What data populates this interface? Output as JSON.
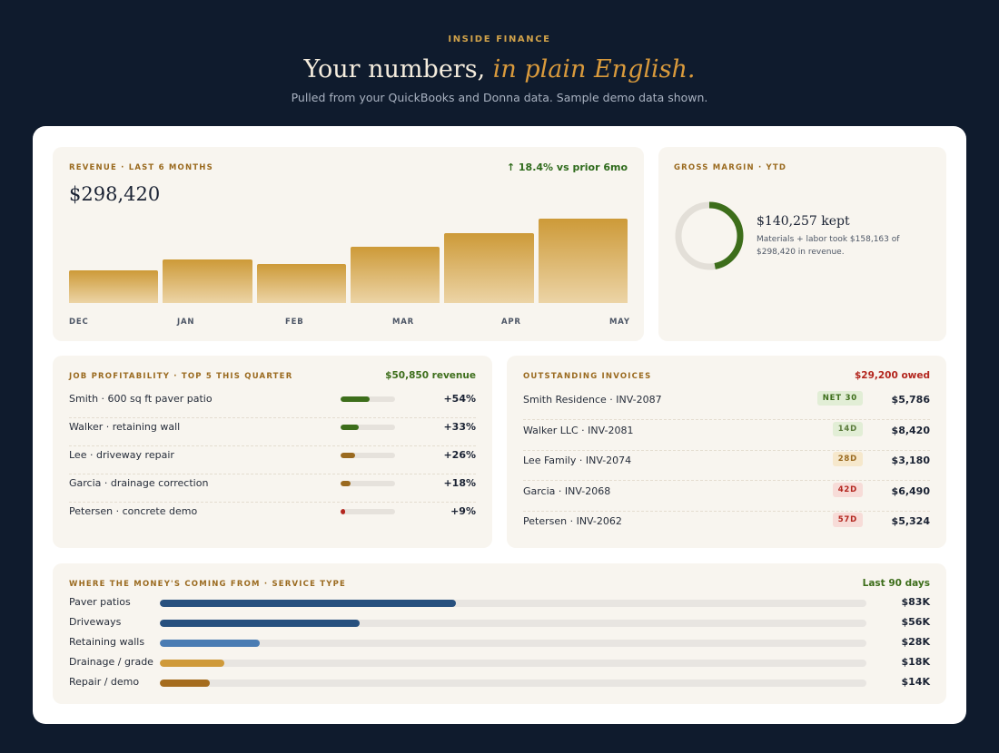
{
  "hero": {
    "eyebrow": "INSIDE FINANCE",
    "title_plain": "Your numbers, ",
    "title_accent": "in plain English.",
    "subtitle": "Pulled from your QuickBooks and Donna data. Sample demo data shown."
  },
  "revenue": {
    "label": "REVENUE · LAST 6 MONTHS",
    "delta": "↑ 18.4% vs prior 6mo",
    "total": "$298,420",
    "chart_data": {
      "type": "bar",
      "categories": [
        "DEC",
        "JAN",
        "FEB",
        "MAR",
        "APR",
        "MAY"
      ],
      "values": [
        37,
        50,
        45,
        65,
        80,
        97
      ],
      "ylim": [
        0,
        100
      ]
    }
  },
  "gross_margin": {
    "label": "GROSS MARGIN · YTD",
    "kept": "$140,257 kept",
    "note": "Materials + labor took $158,163 of $298,420 in revenue.",
    "fraction": 0.47,
    "colors": {
      "arc": "#3d6e1b",
      "track": "#e3dfd8"
    }
  },
  "jobs": {
    "label": "JOB PROFITABILITY · TOP 5 THIS QUARTER",
    "summary": "$50,850 revenue",
    "items": [
      {
        "name": "Smith · 600 sq ft paver patio",
        "pct": "+54%",
        "fill": 0.54,
        "color": "#3d6e1b"
      },
      {
        "name": "Walker · retaining wall",
        "pct": "+33%",
        "fill": 0.33,
        "color": "#3d6e1b"
      },
      {
        "name": "Lee · driveway repair",
        "pct": "+26%",
        "fill": 0.26,
        "color": "#9a6a1f"
      },
      {
        "name": "Garcia · drainage correction",
        "pct": "+18%",
        "fill": 0.18,
        "color": "#9a6a1f"
      },
      {
        "name": "Petersen · concrete demo",
        "pct": "+9%",
        "fill": 0.09,
        "color": "#b3261e"
      }
    ]
  },
  "invoices": {
    "label": "OUTSTANDING INVOICES",
    "summary": "$29,200 owed",
    "items": [
      {
        "name": "Smith Residence · INV-2087",
        "badge": "NET 30",
        "amount": "$5,786",
        "badge_bg": "#e2eed6",
        "badge_fg": "#3d6e1b"
      },
      {
        "name": "Walker LLC · INV-2081",
        "badge": "14D",
        "amount": "$8,420",
        "badge_bg": "#e2eed6",
        "badge_fg": "#5a7a3a"
      },
      {
        "name": "Lee Family · INV-2074",
        "badge": "28D",
        "amount": "$3,180",
        "badge_bg": "#f6e8cc",
        "badge_fg": "#9a6a1f"
      },
      {
        "name": "Garcia · INV-2068",
        "badge": "42D",
        "amount": "$6,490",
        "badge_bg": "#f7dcd8",
        "badge_fg": "#b3261e"
      },
      {
        "name": "Petersen · INV-2062",
        "badge": "57D",
        "amount": "$5,324",
        "badge_bg": "#f7dcd8",
        "badge_fg": "#b3261e"
      }
    ]
  },
  "services": {
    "label": "WHERE THE MONEY'S COMING FROM · SERVICE TYPE",
    "period": "Last 90 days",
    "items": [
      {
        "name": "Paver patios",
        "amount": "$83K",
        "value": 83,
        "color": "#27507e"
      },
      {
        "name": "Driveways",
        "amount": "$56K",
        "value": 56,
        "color": "#27507e"
      },
      {
        "name": "Retaining walls",
        "amount": "$28K",
        "value": 28,
        "color": "#4a7cb3"
      },
      {
        "name": "Drainage / grade",
        "amount": "$18K",
        "value": 18,
        "color": "#cf9a3a"
      },
      {
        "name": "Repair / demo",
        "amount": "$14K",
        "value": 14,
        "color": "#a56c1e"
      }
    ],
    "scale_max": 198
  }
}
